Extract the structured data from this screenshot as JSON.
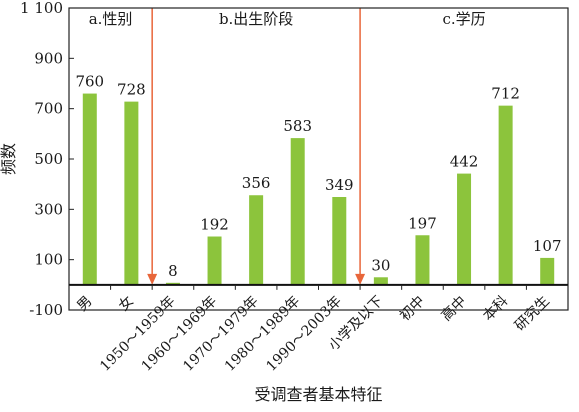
{
  "chart_data": {
    "type": "bar",
    "ylabel": "频数",
    "xlabel": "受调查者基本特征",
    "ylim": [
      -100,
      1100
    ],
    "yticks": [
      -100,
      100,
      300,
      500,
      700,
      900,
      1100
    ],
    "ytick_labels": [
      "-100",
      "100",
      "300",
      "500",
      "700",
      "900",
      "1 100"
    ],
    "bar_color": "#8cc43c",
    "divider_color": "#e8663a",
    "grid": false,
    "categories": [
      "男",
      "女",
      "1950～1959年",
      "1960～1969年",
      "1970～1979年",
      "1980～1989年",
      "1990～2003年",
      "小学及以下",
      "初中",
      "高中",
      "本科",
      "研究生"
    ],
    "values": [
      760,
      728,
      8,
      192,
      356,
      583,
      349,
      30,
      197,
      442,
      712,
      107
    ],
    "value_labels": [
      "760",
      "728",
      "8",
      "192",
      "356",
      "583",
      "349",
      "30",
      "197",
      "442",
      "712",
      "107"
    ],
    "groups": [
      {
        "label": "a.性别"
      },
      {
        "label": "b.出生阶段"
      },
      {
        "label": "c.学历"
      }
    ]
  }
}
